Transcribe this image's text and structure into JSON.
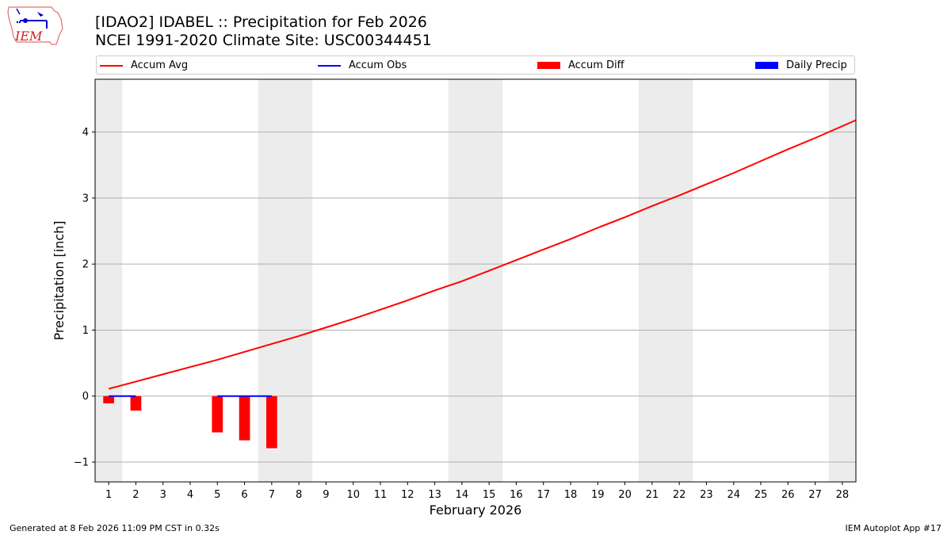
{
  "title": "[IDAO2] IDABEL :: Precipitation for Feb 2026",
  "subtitle": "NCEI 1991-2020 Climate Site: USC00344451",
  "legend": [
    {
      "label": "Accum Avg",
      "kind": "line",
      "color": "#ff0000"
    },
    {
      "label": "Accum Obs",
      "kind": "line",
      "color": "#0000ff"
    },
    {
      "label": "Accum Diff",
      "kind": "box",
      "color": "#ff0000"
    },
    {
      "label": "Daily Precip",
      "kind": "box",
      "color": "#0000ff"
    }
  ],
  "footer": {
    "left": "Generated at 8 Feb 2026 11:09 PM CST in 0.32s",
    "right": "IEM Autoplot App #17"
  },
  "logo_text": "IEM",
  "chart_data": {
    "type": "line",
    "xlabel": "February 2026",
    "ylabel": "Precipitation [inch]",
    "xlim": [
      0.5,
      28.5
    ],
    "ylim": [
      -1.3,
      4.8
    ],
    "yticks": [
      -1,
      0,
      1,
      2,
      3,
      4
    ],
    "ytick_labels": [
      "−1",
      "0",
      "1",
      "2",
      "3",
      "4"
    ],
    "categories": [
      "1",
      "2",
      "3",
      "4",
      "5",
      "6",
      "7",
      "8",
      "9",
      "10",
      "11",
      "12",
      "13",
      "14",
      "15",
      "16",
      "17",
      "18",
      "19",
      "20",
      "21",
      "22",
      "23",
      "24",
      "25",
      "26",
      "27",
      "28"
    ],
    "weekend_bands": [
      [
        0.5,
        1.5
      ],
      [
        6.5,
        8.5
      ],
      [
        13.5,
        15.5
      ],
      [
        20.5,
        22.5
      ],
      [
        27.5,
        28.5
      ]
    ],
    "grid": true,
    "series": [
      {
        "name": "Accum Avg",
        "kind": "line",
        "color": "#ff0000",
        "x": [
          1,
          2,
          3,
          4,
          5,
          6,
          7,
          8,
          9,
          10,
          11,
          12,
          13,
          14,
          15,
          16,
          17,
          18,
          19,
          20,
          21,
          22,
          23,
          24,
          25,
          26,
          27,
          28,
          28.5
        ],
        "values": [
          0.11,
          0.22,
          0.33,
          0.44,
          0.55,
          0.67,
          0.79,
          0.91,
          1.04,
          1.17,
          1.31,
          1.45,
          1.6,
          1.74,
          1.9,
          2.06,
          2.22,
          2.38,
          2.55,
          2.71,
          2.88,
          3.04,
          3.21,
          3.38,
          3.56,
          3.74,
          3.91,
          4.09,
          4.18
        ]
      },
      {
        "name": "Accum Obs",
        "kind": "step",
        "color": "#0000ff",
        "segments": [
          [
            1,
            2,
            0.0
          ],
          [
            5,
            7,
            0.0
          ]
        ]
      },
      {
        "name": "Accum Diff",
        "kind": "bar",
        "color": "#ff0000",
        "x": [
          1,
          2,
          5,
          6,
          7
        ],
        "values": [
          -0.11,
          -0.22,
          -0.55,
          -0.67,
          -0.79
        ]
      },
      {
        "name": "Daily Precip",
        "kind": "bar",
        "color": "#0000ff",
        "x": [],
        "values": []
      }
    ]
  }
}
